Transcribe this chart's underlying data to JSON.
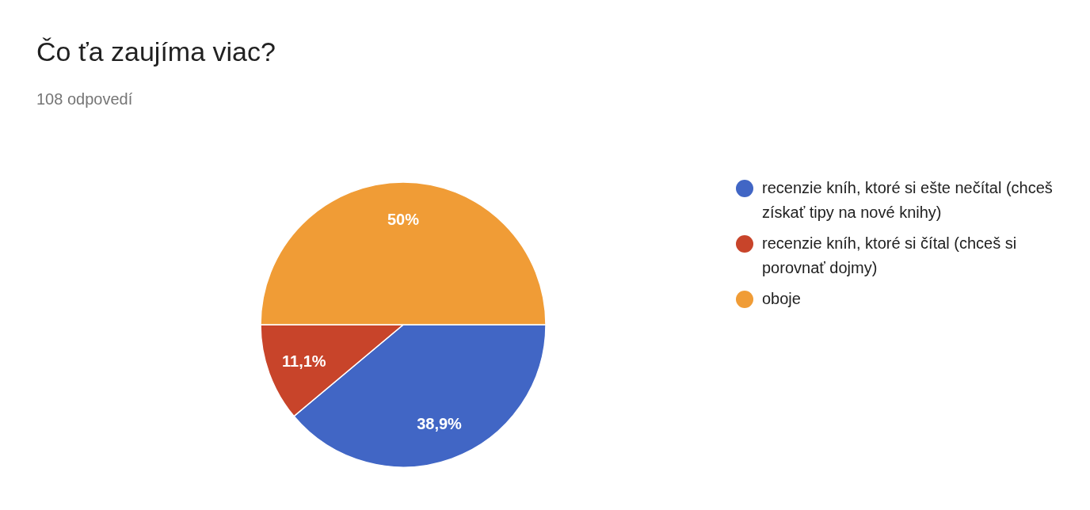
{
  "chart_data": {
    "type": "pie",
    "title": "Čo ťa zaujíma viac?",
    "subtitle": "108 odpovedí",
    "categories": [
      "recenzie kníh, ktoré si ešte nečítal (chceš získať tipy na nové knihy)",
      "recenzie kníh, ktoré si čítal (chceš si porovnať dojmy)",
      "oboje"
    ],
    "values": [
      38.9,
      11.1,
      50
    ],
    "value_labels": [
      "38,9%",
      "11,1%",
      "50%"
    ],
    "colors": [
      "#4166c5",
      "#c8442a",
      "#f09c36"
    ],
    "legend": "right"
  }
}
